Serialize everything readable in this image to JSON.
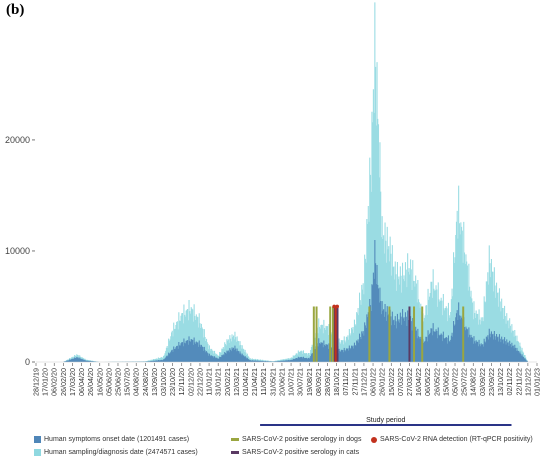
{
  "panel_label": "(b)",
  "colors": {
    "symptoms": "#4f86b8",
    "sampling": "#8fd8e0",
    "dogs": "#9aa640",
    "cats": "#5a3a63",
    "rna": "#c2311e",
    "study": "#2a3487",
    "axis": "#555555"
  },
  "legend": {
    "symptoms": "Human symptoms onset date (1201491 cases)",
    "sampling": "Human sampling/diagnosis date (2474571 cases)",
    "dogs": "SARS-CoV-2 positive serology in dogs",
    "cats": "SARS-CoV-2 positive serology in cats",
    "rna": "SARS-CoV-2 RNA detection (RT-qPCR positivity)"
  },
  "study_period_label": "Study period",
  "chart_data": {
    "type": "area",
    "x_tick_labels": [
      "28/12/19",
      "17/01/20",
      "06/02/20",
      "26/02/20",
      "17/03/20",
      "06/04/20",
      "26/04/20",
      "16/05/20",
      "05/06/20",
      "25/06/20",
      "15/07/20",
      "04/08/20",
      "24/08/20",
      "13/09/20",
      "03/10/20",
      "23/10/20",
      "12/11/20",
      "02/12/20",
      "22/12/20",
      "11/01/21",
      "31/01/21",
      "20/02/21",
      "12/03/21",
      "01/04/21",
      "21/04/21",
      "11/05/21",
      "31/05/21",
      "20/06/21",
      "10/07/21",
      "30/07/21",
      "19/08/21",
      "08/09/21",
      "28/09/21",
      "18/10/21",
      "07/11/21",
      "27/11/21",
      "17/12/21",
      "06/01/22",
      "26/01/22",
      "15/02/22",
      "07/03/22",
      "27/03/22",
      "16/04/22",
      "06/05/22",
      "26/05/22",
      "15/06/22",
      "05/07/22",
      "25/07/22",
      "14/08/22",
      "03/09/22",
      "23/09/22",
      "13/10/22",
      "02/11/22",
      "22/11/22",
      "12/12/22",
      "01/01/23"
    ],
    "y_ticks": [
      0,
      10000,
      20000
    ],
    "ylim": [
      0,
      29000
    ],
    "series": [
      {
        "name": "Human symptoms onset date (1201491 cases)",
        "key_points": [
          [
            0,
            0
          ],
          [
            3,
            0
          ],
          [
            4.5,
            420
          ],
          [
            5.5,
            120
          ],
          [
            7,
            0
          ],
          [
            12,
            30
          ],
          [
            14,
            200
          ],
          [
            15,
            1100
          ],
          [
            16,
            1700
          ],
          [
            17,
            2000
          ],
          [
            18,
            1600
          ],
          [
            19,
            650
          ],
          [
            20,
            300
          ],
          [
            21,
            950
          ],
          [
            21.8,
            1300
          ],
          [
            22.5,
            750
          ],
          [
            23.5,
            150
          ],
          [
            26,
            40
          ],
          [
            28,
            180
          ],
          [
            29,
            450
          ],
          [
            30,
            300
          ],
          [
            31,
            1800
          ],
          [
            32,
            1500
          ],
          [
            33,
            950
          ],
          [
            34,
            1100
          ],
          [
            35,
            1500
          ],
          [
            36,
            2800
          ],
          [
            36.8,
            5400
          ],
          [
            37.2,
            9500
          ],
          [
            37.6,
            6500
          ],
          [
            38,
            4800
          ],
          [
            38.8,
            4200
          ],
          [
            39.5,
            3600
          ],
          [
            40.2,
            4100
          ],
          [
            41,
            3900
          ],
          [
            41.8,
            2700
          ],
          [
            42.5,
            1700
          ],
          [
            43.5,
            3000
          ],
          [
            44.5,
            2400
          ],
          [
            45.5,
            1900
          ],
          [
            46.3,
            4700
          ],
          [
            47,
            3300
          ],
          [
            48,
            2000
          ],
          [
            49,
            1500
          ],
          [
            49.8,
            2600
          ],
          [
            50.5,
            2300
          ],
          [
            51.5,
            1900
          ],
          [
            52.5,
            1400
          ],
          [
            54,
            0
          ]
        ]
      },
      {
        "name": "Human sampling/diagnosis date (2474571 cases)",
        "key_points": [
          [
            0,
            0
          ],
          [
            3,
            0
          ],
          [
            4.5,
            650
          ],
          [
            5.5,
            200
          ],
          [
            7,
            0
          ],
          [
            12,
            60
          ],
          [
            14,
            450
          ],
          [
            15,
            2800
          ],
          [
            16,
            4200
          ],
          [
            17,
            4800
          ],
          [
            18,
            3600
          ],
          [
            19,
            1300
          ],
          [
            20,
            550
          ],
          [
            21,
            1900
          ],
          [
            21.8,
            2400
          ],
          [
            22.5,
            1500
          ],
          [
            23.5,
            300
          ],
          [
            26,
            70
          ],
          [
            28,
            350
          ],
          [
            29,
            1000
          ],
          [
            30,
            650
          ],
          [
            31,
            3300
          ],
          [
            32,
            3100
          ],
          [
            33,
            1700
          ],
          [
            34,
            2000
          ],
          [
            35,
            3300
          ],
          [
            36,
            7200
          ],
          [
            36.8,
            18000
          ],
          [
            37.2,
            28000
          ],
          [
            37.6,
            21000
          ],
          [
            38,
            11500
          ],
          [
            38.8,
            10200
          ],
          [
            39.5,
            7800
          ],
          [
            40.2,
            7600
          ],
          [
            41,
            8600
          ],
          [
            41.8,
            6800
          ],
          [
            42.5,
            3600
          ],
          [
            43.5,
            7200
          ],
          [
            44.5,
            5400
          ],
          [
            45.5,
            4200
          ],
          [
            46.3,
            13800
          ],
          [
            47,
            10400
          ],
          [
            48,
            4700
          ],
          [
            49,
            3600
          ],
          [
            49.8,
            9200
          ],
          [
            50.5,
            6600
          ],
          [
            51.5,
            4200
          ],
          [
            52.5,
            2600
          ],
          [
            54,
            0
          ]
        ]
      }
    ],
    "serology_dogs_tick_positions": [
      30.5,
      30.8,
      32.3,
      32.6,
      36.6,
      38.8,
      41.5,
      42.4,
      46.9
    ],
    "serology_cats_tick_positions": [
      32.8,
      33.1,
      41.0
    ],
    "rna_detection_tick_positions": [
      32.9
    ],
    "study_period_tick_range": [
      24.6,
      52.2
    ]
  }
}
